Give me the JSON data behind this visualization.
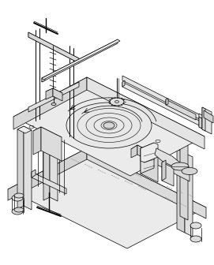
{
  "bg_color": "#ffffff",
  "lc": "#000000",
  "fc_light": "#f0f0f0",
  "fc_mid": "#e0e0e0",
  "fc_dark": "#d0d0d0",
  "fc_darker": "#c0c0c0",
  "figsize": [
    2.71,
    3.36
  ],
  "dpi": 100
}
